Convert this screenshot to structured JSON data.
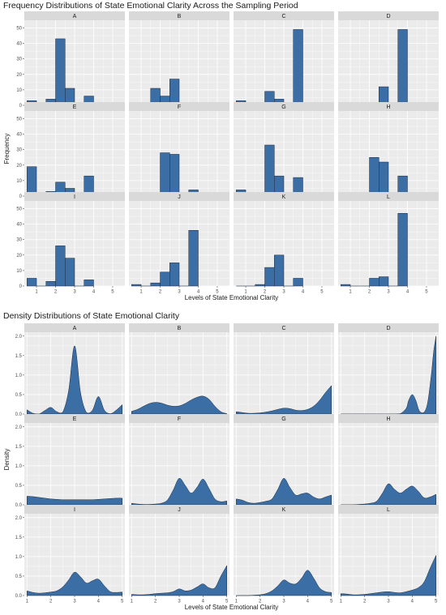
{
  "charts": {
    "frequency": {
      "title": "Frequency Distributions of State Emotional Clarity Across the Sampling Period"
    },
    "density": {
      "title": "Density Distributions of State Emotional Clarity"
    }
  },
  "colors": {
    "fill": "#3b6ea5",
    "outline": "#1f2a38",
    "panel_bg": "#ebebeb",
    "strip_bg": "#d9d9d9",
    "grid": "#ffffff"
  },
  "chart_data": [
    {
      "type": "bar",
      "title": "Frequency Distributions of State Emotional Clarity Across the Sampling Period",
      "xlabel": "Levels of State Emotional Clarity",
      "ylabel": "Frequency",
      "ylim": [
        0,
        55
      ],
      "yticks": [
        0,
        10,
        20,
        30,
        40,
        50
      ],
      "categories": [
        1,
        2,
        3,
        4,
        5
      ],
      "x_labels": [
        "1",
        "2",
        "3",
        "4",
        "5"
      ],
      "bins": [
        0.5,
        1.0,
        1.5,
        2.0,
        2.5,
        3.0,
        3.5,
        4.0,
        4.5,
        5.0,
        5.5
      ],
      "grid": true,
      "facets": [
        {
          "name": "A",
          "values": [
            3,
            0,
            4,
            43,
            11,
            0,
            6
          ]
        },
        {
          "name": "B",
          "values": [
            1,
            0,
            11,
            6,
            17,
            0,
            0
          ]
        },
        {
          "name": "C",
          "values": [
            3,
            0,
            0,
            9,
            4,
            0,
            49
          ]
        },
        {
          "name": "D",
          "values": [
            0,
            0,
            0,
            0,
            12,
            0,
            49
          ]
        },
        {
          "name": "E",
          "values": [
            19,
            0,
            3,
            9,
            5,
            0,
            13
          ]
        },
        {
          "name": "F",
          "values": [
            1,
            0,
            0,
            28,
            27,
            0,
            4
          ]
        },
        {
          "name": "G",
          "values": [
            4,
            0,
            2,
            33,
            13,
            0,
            12
          ]
        },
        {
          "name": "H",
          "values": [
            0,
            0,
            1,
            25,
            22,
            0,
            13
          ]
        },
        {
          "name": "I",
          "values": [
            5,
            0,
            3,
            26,
            18,
            0,
            4
          ]
        },
        {
          "name": "J",
          "values": [
            1,
            0,
            2,
            9,
            15,
            0,
            36
          ]
        },
        {
          "name": "K",
          "values": [
            0,
            0,
            1,
            12,
            20,
            0,
            5
          ]
        },
        {
          "name": "L",
          "values": [
            1,
            0,
            0,
            5,
            6,
            0,
            47
          ]
        }
      ]
    },
    {
      "type": "area",
      "title": "Density Distributions of State Emotional Clarity",
      "xlabel": "Levels of State Emotional Clarity",
      "ylabel": "Density",
      "xlim": [
        1,
        5
      ],
      "ylim": [
        0,
        2.1
      ],
      "yticks": [
        0.0,
        0.5,
        1.0,
        1.5,
        2.0
      ],
      "y_labels": [
        "0.0",
        "0.5",
        "1.0",
        "1.5",
        "2.0"
      ],
      "xticks": [
        1,
        2,
        3,
        4,
        5
      ],
      "x_labels": [
        "1",
        "2",
        "3",
        "4",
        "5"
      ],
      "grid": true,
      "facets": [
        {
          "name": "A",
          "x": [
            1,
            1.25,
            1.5,
            1.75,
            2,
            2.25,
            2.5,
            2.75,
            3,
            3.25,
            3.5,
            3.75,
            4,
            4.25,
            4.5,
            4.75,
            5
          ],
          "y": [
            0.11,
            0.02,
            0.0,
            0.09,
            0.17,
            0.06,
            0.05,
            0.6,
            1.75,
            0.55,
            0.04,
            0.1,
            0.45,
            0.1,
            0.01,
            0.1,
            0.24
          ]
        },
        {
          "name": "B",
          "x": [
            1,
            1.25,
            1.5,
            1.75,
            2,
            2.25,
            2.5,
            2.75,
            3,
            3.25,
            3.5,
            3.75,
            4,
            4.25,
            4.5,
            4.75,
            5
          ],
          "y": [
            0.07,
            0.12,
            0.2,
            0.27,
            0.3,
            0.28,
            0.23,
            0.2,
            0.21,
            0.27,
            0.36,
            0.43,
            0.46,
            0.38,
            0.2,
            0.06,
            0.01
          ]
        },
        {
          "name": "C",
          "x": [
            1,
            1.25,
            1.5,
            1.75,
            2,
            2.25,
            2.5,
            2.75,
            3,
            3.25,
            3.5,
            3.75,
            4,
            4.25,
            4.5,
            4.75,
            5
          ],
          "y": [
            0.06,
            0.04,
            0.02,
            0.02,
            0.03,
            0.05,
            0.08,
            0.12,
            0.15,
            0.14,
            0.1,
            0.09,
            0.12,
            0.2,
            0.35,
            0.55,
            0.73
          ]
        },
        {
          "name": "D",
          "x": [
            1,
            1.5,
            2,
            2.5,
            3,
            3.25,
            3.5,
            3.75,
            3.85,
            4,
            4.15,
            4.3,
            4.5,
            4.65,
            4.8,
            4.9,
            5
          ],
          "y": [
            0.0,
            0.0,
            0.0,
            0.0,
            0.0,
            0.0,
            0.01,
            0.15,
            0.35,
            0.5,
            0.35,
            0.08,
            0.05,
            0.3,
            1.0,
            1.6,
            2.0
          ]
        },
        {
          "name": "E",
          "x": [
            1,
            1.25,
            1.5,
            1.75,
            2,
            2.25,
            2.5,
            2.75,
            3,
            3.25,
            3.5,
            3.75,
            4,
            4.25,
            4.5,
            4.75,
            5
          ],
          "y": [
            0.22,
            0.21,
            0.19,
            0.17,
            0.15,
            0.14,
            0.13,
            0.13,
            0.13,
            0.13,
            0.13,
            0.13,
            0.14,
            0.15,
            0.16,
            0.17,
            0.17
          ]
        },
        {
          "name": "F",
          "x": [
            1,
            1.25,
            1.5,
            1.75,
            2,
            2.25,
            2.5,
            2.75,
            3,
            3.25,
            3.5,
            3.75,
            4,
            4.25,
            4.5,
            4.75,
            5
          ],
          "y": [
            0.04,
            0.02,
            0.01,
            0.01,
            0.02,
            0.04,
            0.12,
            0.38,
            0.68,
            0.5,
            0.3,
            0.45,
            0.66,
            0.42,
            0.15,
            0.08,
            0.1
          ]
        },
        {
          "name": "G",
          "x": [
            1,
            1.25,
            1.5,
            1.75,
            2,
            2.25,
            2.5,
            2.75,
            3,
            3.25,
            3.5,
            3.75,
            4,
            4.25,
            4.5,
            4.75,
            5
          ],
          "y": [
            0.15,
            0.12,
            0.06,
            0.04,
            0.06,
            0.09,
            0.15,
            0.4,
            0.68,
            0.45,
            0.25,
            0.28,
            0.3,
            0.2,
            0.15,
            0.2,
            0.25
          ]
        },
        {
          "name": "H",
          "x": [
            1,
            1.25,
            1.5,
            1.75,
            2,
            2.25,
            2.5,
            2.75,
            3,
            3.25,
            3.5,
            3.75,
            4,
            4.25,
            4.5,
            4.75,
            5
          ],
          "y": [
            0.0,
            0.0,
            0.0,
            0.01,
            0.02,
            0.04,
            0.09,
            0.3,
            0.54,
            0.4,
            0.3,
            0.4,
            0.48,
            0.35,
            0.18,
            0.2,
            0.27
          ]
        },
        {
          "name": "I",
          "x": [
            1,
            1.25,
            1.5,
            1.75,
            2,
            2.25,
            2.5,
            2.75,
            3,
            3.25,
            3.5,
            3.75,
            4,
            4.25,
            4.5,
            4.75,
            5
          ],
          "y": [
            0.12,
            0.08,
            0.06,
            0.07,
            0.09,
            0.12,
            0.22,
            0.4,
            0.6,
            0.48,
            0.32,
            0.38,
            0.42,
            0.25,
            0.1,
            0.08,
            0.09
          ]
        },
        {
          "name": "J",
          "x": [
            1,
            1.25,
            1.5,
            1.75,
            2,
            2.25,
            2.5,
            2.75,
            3,
            3.25,
            3.5,
            3.75,
            4,
            4.25,
            4.5,
            4.75,
            5
          ],
          "y": [
            0.03,
            0.02,
            0.02,
            0.03,
            0.05,
            0.06,
            0.07,
            0.1,
            0.17,
            0.12,
            0.14,
            0.22,
            0.3,
            0.2,
            0.2,
            0.5,
            0.77
          ]
        },
        {
          "name": "K",
          "x": [
            1,
            1.25,
            1.5,
            1.75,
            2,
            2.25,
            2.5,
            2.75,
            3,
            3.25,
            3.5,
            3.75,
            4,
            4.25,
            4.5,
            4.75,
            5
          ],
          "y": [
            0.0,
            0.0,
            0.0,
            0.01,
            0.02,
            0.05,
            0.12,
            0.25,
            0.4,
            0.32,
            0.3,
            0.45,
            0.65,
            0.45,
            0.2,
            0.1,
            0.08
          ]
        },
        {
          "name": "L",
          "x": [
            1,
            1.25,
            1.5,
            1.75,
            2,
            2.25,
            2.5,
            2.75,
            3,
            3.25,
            3.5,
            3.75,
            4,
            4.25,
            4.5,
            4.75,
            5
          ],
          "y": [
            0.05,
            0.04,
            0.02,
            0.02,
            0.03,
            0.05,
            0.07,
            0.09,
            0.1,
            0.08,
            0.07,
            0.1,
            0.14,
            0.2,
            0.35,
            0.7,
            1.03
          ]
        }
      ]
    }
  ]
}
